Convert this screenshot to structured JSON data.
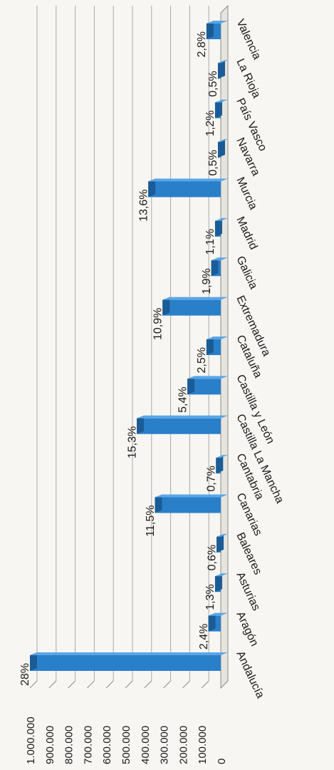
{
  "chart_data": {
    "type": "bar",
    "orientation": "rotated-90",
    "categories": [
      "Andalucía",
      "Aragón",
      "Asturias",
      "Baleares",
      "Canarias",
      "Cantabria",
      "Castilla La Mancha",
      "Castilla y León",
      "Cataluña",
      "Extremadura",
      "Galicia",
      "Madrid",
      "Murcia",
      "Navarra",
      "País Vasco",
      "La Rioja",
      "Valencia"
    ],
    "values": [
      1000000,
      65000,
      30000,
      22000,
      345000,
      25000,
      440000,
      175000,
      75000,
      305000,
      50000,
      30000,
      380000,
      15000,
      30000,
      15000,
      75000
    ],
    "data_labels": [
      "28%",
      "2,4%",
      "1,3%",
      "0,6%",
      "11,5%",
      "0,7%",
      "15,3%",
      "5,4%",
      "2,5%",
      "10,9%",
      "1,9%",
      "1,1%",
      "13,6%",
      "0,5%",
      "1,2%",
      "0,5%",
      "2,8%"
    ],
    "tick_labels": [
      "0",
      "100.000",
      "200.000",
      "300.000",
      "400.000",
      "500.000",
      "600.000",
      "700.000",
      "800.000",
      "900.000",
      "1.000.000"
    ],
    "ylim": [
      0,
      1000000
    ],
    "grid": true,
    "bar_color": "#2a7fc9",
    "bar_dark_color": "#1b5c96",
    "bar_light_color": "#5aa6e6"
  }
}
